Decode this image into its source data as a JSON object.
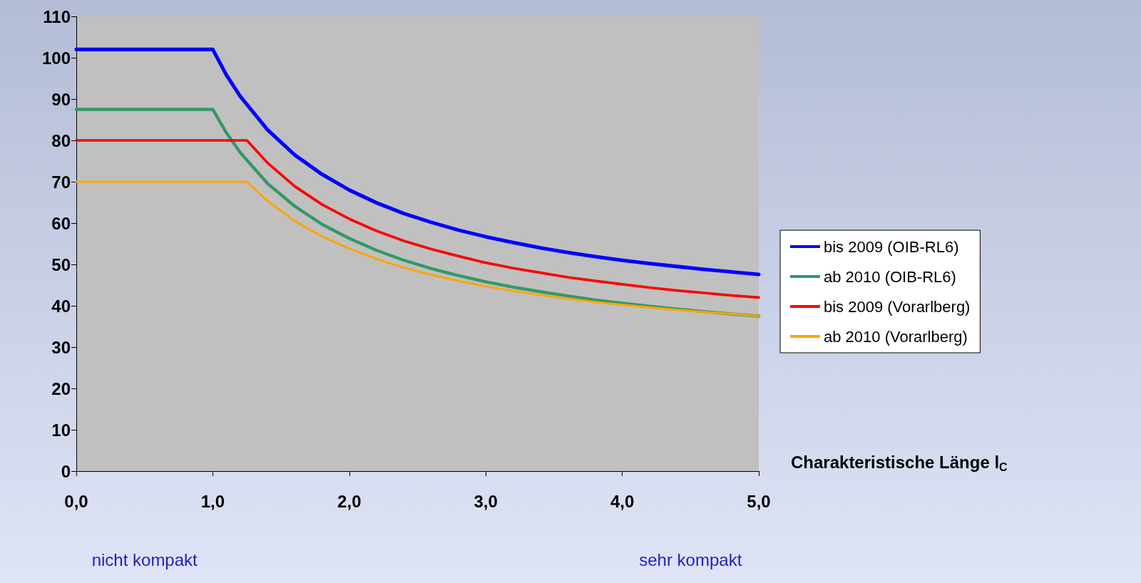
{
  "chart_data": {
    "type": "line",
    "xlabel": "Charakteristische Länge l$_{C}$",
    "xlim": [
      0,
      5
    ],
    "xticks": [
      {
        "value": 0,
        "label": "0,0"
      },
      {
        "value": 1,
        "label": "1,0"
      },
      {
        "value": 2,
        "label": "2,0"
      },
      {
        "value": 3,
        "label": "3,0"
      },
      {
        "value": 4,
        "label": "4,0"
      },
      {
        "value": 5,
        "label": "5,0"
      }
    ],
    "ylim": [
      0,
      110
    ],
    "yticks": [
      0,
      10,
      20,
      30,
      40,
      50,
      60,
      70,
      80,
      90,
      100,
      110
    ],
    "grid": false,
    "legend": "right",
    "marker": "none",
    "line_style": "solid",
    "annotations": [
      "nicht kompakt",
      "sehr kompakt"
    ],
    "series": [
      {
        "name": "bis 2009 (OIB-RL6)",
        "color": "#0000ff",
        "x": [
          0,
          1.0,
          1.1,
          1.2,
          1.4,
          1.6,
          1.8,
          2.0,
          2.2,
          2.4,
          2.6,
          2.8,
          3.0,
          3.2,
          3.4,
          3.6,
          3.8,
          4.0,
          4.2,
          4.4,
          4.6,
          4.8,
          5.0
        ],
        "values": [
          102,
          102,
          95.8,
          90.7,
          82.6,
          76.5,
          71.8,
          68,
          64.9,
          62.3,
          60.2,
          58.3,
          56.7,
          55.3,
          54,
          52.9,
          51.9,
          51,
          50.2,
          49.5,
          48.8,
          48.2,
          47.6
        ]
      },
      {
        "name": "ab 2010 (OIB-RL6)",
        "color": "#339966",
        "x": [
          0,
          1.0,
          1.1,
          1.2,
          1.4,
          1.6,
          1.8,
          2.0,
          2.2,
          2.4,
          2.6,
          2.8,
          3.0,
          3.2,
          3.4,
          3.6,
          3.8,
          4.0,
          4.2,
          4.4,
          4.6,
          4.8,
          5.0
        ],
        "values": [
          87.5,
          87.5,
          81.8,
          77.1,
          69.6,
          64.1,
          59.7,
          56.3,
          53.4,
          51,
          49,
          47.3,
          45.8,
          44.5,
          43.4,
          42.4,
          41.4,
          40.6,
          39.9,
          39.2,
          38.6,
          38,
          37.5
        ]
      },
      {
        "name": "bis 2009 (Vorarlberg)",
        "color": "#ff0000",
        "x": [
          0,
          1.25,
          1.4,
          1.6,
          1.8,
          2.0,
          2.2,
          2.4,
          2.6,
          2.8,
          3.0,
          3.2,
          3.4,
          3.6,
          3.8,
          4.0,
          4.2,
          4.4,
          4.6,
          4.8,
          5.0
        ],
        "values": [
          80,
          80,
          74.6,
          68.9,
          64.5,
          61,
          58.1,
          55.7,
          53.7,
          52,
          50.4,
          49.1,
          48,
          46.9,
          46,
          45.2,
          44.4,
          43.7,
          43.1,
          42.5,
          42
        ]
      },
      {
        "name": "ab 2010 (Vorarlberg)",
        "color": "#ffa500",
        "x": [
          0,
          1.25,
          1.4,
          1.6,
          1.8,
          2.0,
          2.2,
          2.4,
          2.6,
          2.8,
          3.0,
          3.2,
          3.4,
          3.6,
          3.8,
          4.0,
          4.2,
          4.4,
          4.6,
          4.8,
          5.0
        ],
        "values": [
          70,
          70,
          65.4,
          60.5,
          56.8,
          53.8,
          51.3,
          49.2,
          47.5,
          46,
          44.7,
          43.6,
          42.6,
          41.7,
          40.9,
          40.2,
          39.6,
          39,
          38.5,
          38,
          37.5
        ]
      }
    ]
  }
}
